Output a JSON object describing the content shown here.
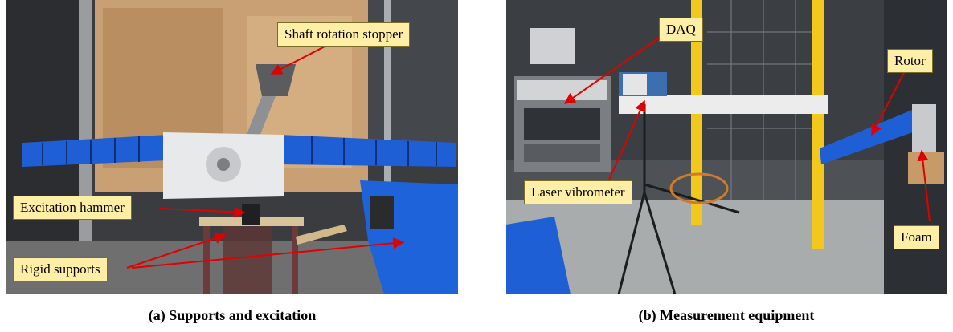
{
  "panels": [
    {
      "caption": "(a) Supports and excitation",
      "labels": {
        "shaft_stopper": "Shaft rotation stopper",
        "hammer": "Excitation hammer",
        "supports": "Rigid supports"
      }
    },
    {
      "caption": "(b) Measurement equipment",
      "labels": {
        "daq": "DAQ",
        "rotor": "Rotor",
        "laser": "Laser vibrometer",
        "foam": "Foam"
      }
    }
  ],
  "colors": {
    "callout_fill": "#ffeea6",
    "arrow": "#e00000",
    "blade_blue": "#1f5fd6"
  }
}
